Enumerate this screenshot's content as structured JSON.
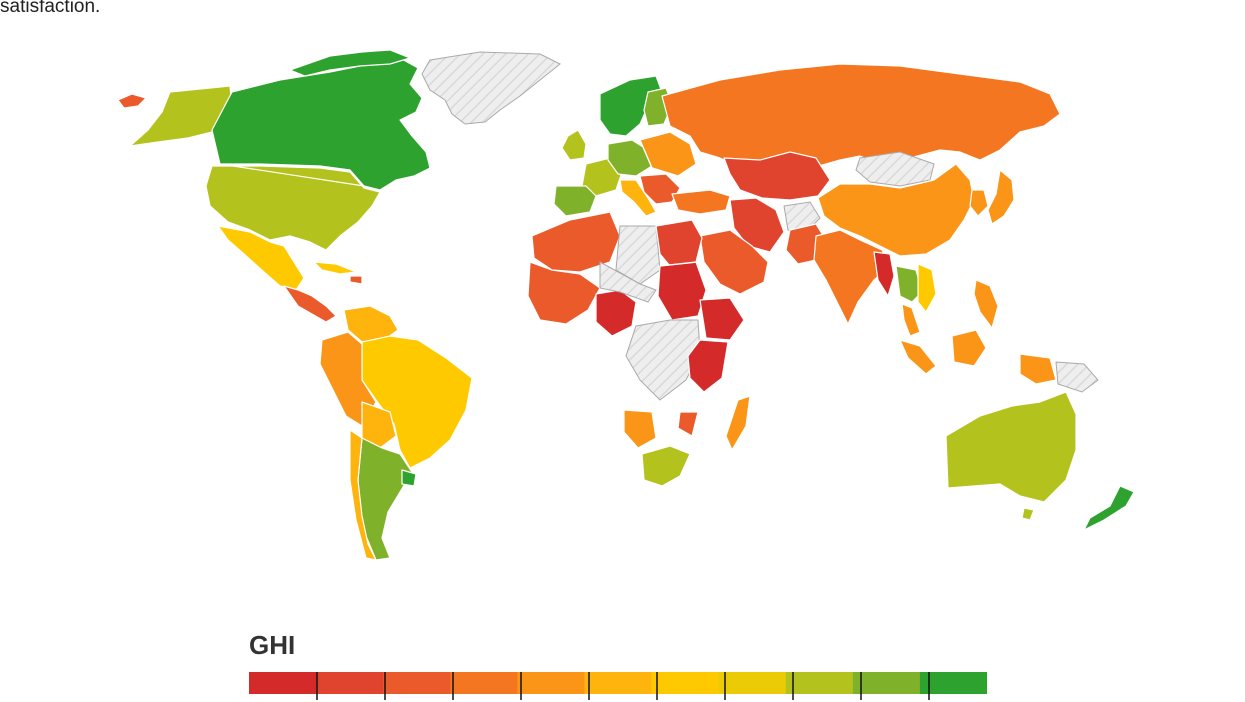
{
  "caption": "satisfaction.",
  "legend": {
    "title": "GHI",
    "colors": [
      "#d42a2a",
      "#e0432e",
      "#ea5a2b",
      "#f47620",
      "#fb9518",
      "#ffb30d",
      "#ffc900",
      "#eacb05",
      "#b4c21e",
      "#7fb22a",
      "#2ea22e"
    ]
  },
  "map": {
    "colors": {
      "very_high": "#d42a2a",
      "high": "#e0432e",
      "mid_high": "#ea5a2b",
      "orange": "#f47620",
      "light_orange": "#fb9518",
      "amber": "#ffb30d",
      "yellow": "#ffc900",
      "yellow_green": "#b4c21e",
      "green": "#7fb22a",
      "dark_green": "#2ea22e",
      "no_data": "#eeeeee"
    }
  }
}
